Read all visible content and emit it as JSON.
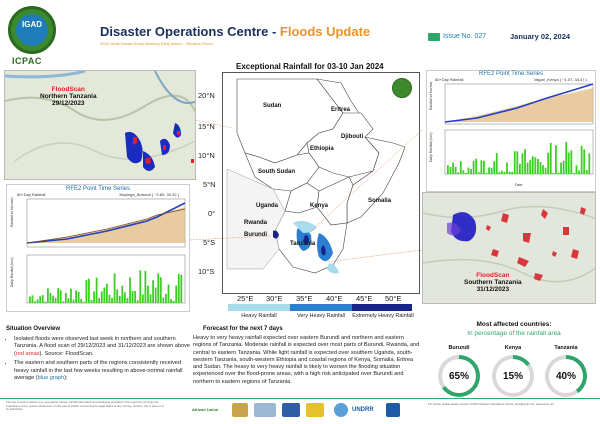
{
  "header": {
    "logo_text": "IGAD",
    "org": "ICPAC",
    "title_main": "Disaster Operations Centre - ",
    "title_accent": "Floods Update",
    "subtitle": "IGAD Multi-Hazard Early Warning Early Action - Situation Room",
    "issue": "Issue No. 027",
    "date": "January 02, 2024"
  },
  "left_top": {
    "source": "FloodScan",
    "region": "Northern Tanzania",
    "date": "29/12/2023"
  },
  "left_chart": {
    "title": "RFE2 Point Time Series",
    "series_label": "80+Day Rainfall",
    "location": "Muyinga_Burundi  ( ~2.85, 30.32 )",
    "y_top": "Rainfall vs Normal (mm)",
    "y_bottom": "Daily Rainfall (mm)"
  },
  "right_chart": {
    "title": "RFE2 Point Time Series",
    "series_label": "80+Day Rainfall",
    "location": "Migori_Kenya  ( ~1.07, 34.47 )",
    "y_top": "Rainfall vs Normal (mm)",
    "y_bottom": "Daily Rainfall (mm)",
    "x_label": "Date"
  },
  "right_bottom": {
    "source": "FloodScan",
    "region": "Southern Tanzania",
    "date": "31/12/2023"
  },
  "main_map": {
    "title": "Exceptional Rainfall for 03-10 Jan 2024",
    "lat_labels": [
      "20°N",
      "15°N",
      "10°N",
      "5°N",
      "0°",
      "5°S",
      "10°S"
    ],
    "lon_labels": [
      "25°E",
      "30°E",
      "35°E",
      "40°E",
      "45°E",
      "50°E"
    ],
    "countries": {
      "sudan": "Sudan",
      "eritrea": "Eritrea",
      "djibouti": "Djibouti",
      "ethiopia": "Ethiopia",
      "south_sudan": "South Sudan",
      "somalia": "Somalia",
      "uganda": "Uganda",
      "kenya": "Kenya",
      "rwanda": "Rwanda",
      "burundi": "Burundi",
      "tanzania": "Tanzania"
    },
    "legend": [
      {
        "label": "Heavy Rainfall",
        "color": "#a8dced"
      },
      {
        "label": "Very Heavy Rainfall",
        "color": "#2a7fd0"
      },
      {
        "label": "Extremely Heavy Rainfall",
        "color": "#17228a"
      }
    ]
  },
  "situation": {
    "title": "Situation Overview",
    "b1_pre": "Isolated floods were observed last week in northern and southern Tanzania. A flood scan of 29/12/2023 and 31/12/2023 are shown above (",
    "b1_red": "red areas",
    "b1_post": "). Source: FloodScan.",
    "b2_pre": "The eastern and southern parts of the regions consistently received heavy rainfall in the last few weeks resulting in above-normal rainfall average (",
    "b2_blue": "blue graph",
    "b2_post": ");"
  },
  "forecast": {
    "title": "Forecast for the next 7 days",
    "text": "Heavy to very heavy rainfall expected over eastern Burundi and northern and eastern regions of Tanzania. Moderate rainfall is expected over most parts of Burundi, Rwanda, and central to eastern Tanzania. While light rainfall is expected over southern Uganda, south-western Tanzania, south-western Ethiopia and coastal regions of Kenya, Somalia, Eritrea and Sudan. The heavy to very heavy rainfall is likely to worsen the flooding situation experienced over the flood-prone areas, with a high risk anticipated over Burundi and northern to eastern regions of Tanzania."
  },
  "affected": {
    "title": "Most affected countries:",
    "subtitle": "In percentage of the rainfall area",
    "countries": [
      {
        "name": "Burundi",
        "value": "65%",
        "fraction": 0.65
      },
      {
        "name": "Kenya",
        "value": "15%",
        "fraction": 0.15
      },
      {
        "name": "Tanzania",
        "value": "40%",
        "fraction": 0.4
      }
    ],
    "ring_color": "#2ea56b",
    "ring_bg": "#d9d9d9"
  },
  "footer": {
    "left_note": "The use of such products (e.g. geographic names, rainfall information and analyses) provided in this report do not imply the expression of any opinion whatsoever on the part of ICPAC concerning the legal status of any country, territory, city or area or of its authorities.",
    "right_note": "For further details please contact: ICPAC Disaster Operations Centre, dmo@icpac.net, www.icpac.net",
    "partners": [
      "African Union",
      "UNDRR"
    ]
  }
}
